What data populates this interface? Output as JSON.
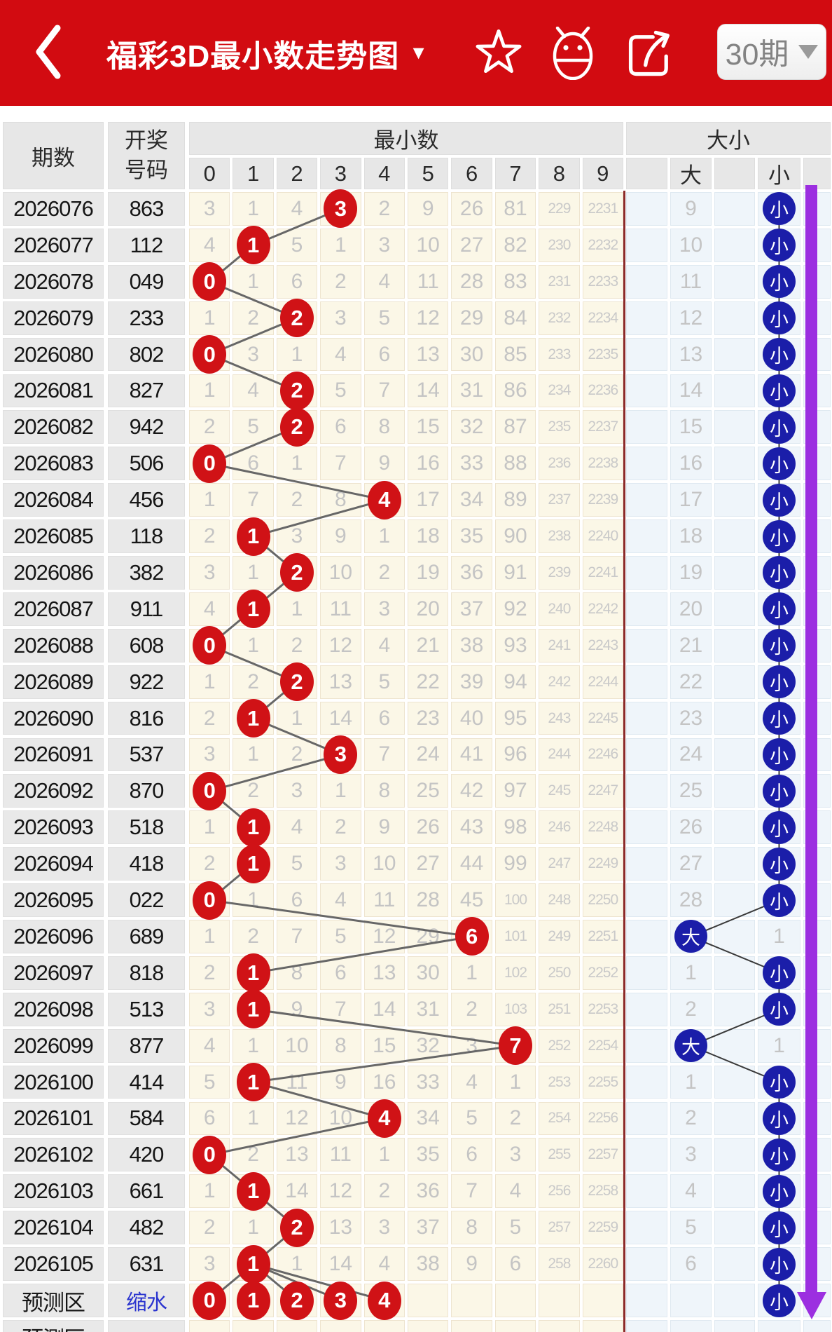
{
  "header": {
    "title": "福彩3D最小数走势图",
    "title_caret": "▼",
    "period_selector": "30期",
    "icons": {
      "back": "back-chevron",
      "favorite": "star-outline",
      "app": "android-robot",
      "share": "share-arrow",
      "period_caret": "chevron-down"
    }
  },
  "table": {
    "headers": {
      "period": "期数",
      "draw_number_line1": "开奖",
      "draw_number_line2": "号码",
      "min_group": "最小数",
      "digit_cols": [
        "0",
        "1",
        "2",
        "3",
        "4",
        "5",
        "6",
        "7",
        "8",
        "9"
      ],
      "size_group": "大小",
      "size_cols": [
        "",
        "大",
        "",
        "小",
        ""
      ]
    },
    "rows": [
      {
        "period": "2026076",
        "number": "863",
        "hit": 3,
        "miss": [
          3,
          1,
          4,
          null,
          2,
          9,
          26,
          81,
          229,
          2231
        ],
        "size": "小",
        "size_miss": 9
      },
      {
        "period": "2026077",
        "number": "112",
        "hit": 1,
        "miss": [
          4,
          null,
          5,
          1,
          3,
          10,
          27,
          82,
          230,
          2232
        ],
        "size": "小",
        "size_miss": 10
      },
      {
        "period": "2026078",
        "number": "049",
        "hit": 0,
        "miss": [
          null,
          1,
          6,
          2,
          4,
          11,
          28,
          83,
          231,
          2233
        ],
        "size": "小",
        "size_miss": 11
      },
      {
        "period": "2026079",
        "number": "233",
        "hit": 2,
        "miss": [
          1,
          2,
          null,
          3,
          5,
          12,
          29,
          84,
          232,
          2234
        ],
        "size": "小",
        "size_miss": 12
      },
      {
        "period": "2026080",
        "number": "802",
        "hit": 0,
        "miss": [
          null,
          3,
          1,
          4,
          6,
          13,
          30,
          85,
          233,
          2235
        ],
        "size": "小",
        "size_miss": 13
      },
      {
        "period": "2026081",
        "number": "827",
        "hit": 2,
        "miss": [
          1,
          4,
          null,
          5,
          7,
          14,
          31,
          86,
          234,
          2236
        ],
        "size": "小",
        "size_miss": 14
      },
      {
        "period": "2026082",
        "number": "942",
        "hit": 2,
        "miss": [
          2,
          5,
          null,
          6,
          8,
          15,
          32,
          87,
          235,
          2237
        ],
        "size": "小",
        "size_miss": 15
      },
      {
        "period": "2026083",
        "number": "506",
        "hit": 0,
        "miss": [
          null,
          6,
          1,
          7,
          9,
          16,
          33,
          88,
          236,
          2238
        ],
        "size": "小",
        "size_miss": 16
      },
      {
        "period": "2026084",
        "number": "456",
        "hit": 4,
        "miss": [
          1,
          7,
          2,
          8,
          null,
          17,
          34,
          89,
          237,
          2239
        ],
        "size": "小",
        "size_miss": 17
      },
      {
        "period": "2026085",
        "number": "118",
        "hit": 1,
        "miss": [
          2,
          null,
          3,
          9,
          1,
          18,
          35,
          90,
          238,
          2240
        ],
        "size": "小",
        "size_miss": 18
      },
      {
        "period": "2026086",
        "number": "382",
        "hit": 2,
        "miss": [
          3,
          1,
          null,
          10,
          2,
          19,
          36,
          91,
          239,
          2241
        ],
        "size": "小",
        "size_miss": 19
      },
      {
        "period": "2026087",
        "number": "911",
        "hit": 1,
        "miss": [
          4,
          null,
          1,
          11,
          3,
          20,
          37,
          92,
          240,
          2242
        ],
        "size": "小",
        "size_miss": 20
      },
      {
        "period": "2026088",
        "number": "608",
        "hit": 0,
        "miss": [
          null,
          1,
          2,
          12,
          4,
          21,
          38,
          93,
          241,
          2243
        ],
        "size": "小",
        "size_miss": 21
      },
      {
        "period": "2026089",
        "number": "922",
        "hit": 2,
        "miss": [
          1,
          2,
          null,
          13,
          5,
          22,
          39,
          94,
          242,
          2244
        ],
        "size": "小",
        "size_miss": 22
      },
      {
        "period": "2026090",
        "number": "816",
        "hit": 1,
        "miss": [
          2,
          null,
          1,
          14,
          6,
          23,
          40,
          95,
          243,
          2245
        ],
        "size": "小",
        "size_miss": 23
      },
      {
        "period": "2026091",
        "number": "537",
        "hit": 3,
        "miss": [
          3,
          1,
          2,
          null,
          7,
          24,
          41,
          96,
          244,
          2246
        ],
        "size": "小",
        "size_miss": 24
      },
      {
        "period": "2026092",
        "number": "870",
        "hit": 0,
        "miss": [
          null,
          2,
          3,
          1,
          8,
          25,
          42,
          97,
          245,
          2247
        ],
        "size": "小",
        "size_miss": 25
      },
      {
        "period": "2026093",
        "number": "518",
        "hit": 1,
        "miss": [
          1,
          null,
          4,
          2,
          9,
          26,
          43,
          98,
          246,
          2248
        ],
        "size": "小",
        "size_miss": 26
      },
      {
        "period": "2026094",
        "number": "418",
        "hit": 1,
        "miss": [
          2,
          null,
          5,
          3,
          10,
          27,
          44,
          99,
          247,
          2249
        ],
        "size": "小",
        "size_miss": 27
      },
      {
        "period": "2026095",
        "number": "022",
        "hit": 0,
        "miss": [
          null,
          1,
          6,
          4,
          11,
          28,
          45,
          100,
          248,
          2250
        ],
        "size": "小",
        "size_miss": 28
      },
      {
        "period": "2026096",
        "number": "689",
        "hit": 6,
        "miss": [
          1,
          2,
          7,
          5,
          12,
          29,
          null,
          101,
          249,
          2251
        ],
        "size": "大",
        "size_miss": 1
      },
      {
        "period": "2026097",
        "number": "818",
        "hit": 1,
        "miss": [
          2,
          null,
          8,
          6,
          13,
          30,
          1,
          102,
          250,
          2252
        ],
        "size": "小",
        "size_miss": 1
      },
      {
        "period": "2026098",
        "number": "513",
        "hit": 1,
        "miss": [
          3,
          null,
          9,
          7,
          14,
          31,
          2,
          103,
          251,
          2253
        ],
        "size": "小",
        "size_miss": 2
      },
      {
        "period": "2026099",
        "number": "877",
        "hit": 7,
        "miss": [
          4,
          1,
          10,
          8,
          15,
          32,
          3,
          null,
          252,
          2254
        ],
        "size": "大",
        "size_miss": 1
      },
      {
        "period": "2026100",
        "number": "414",
        "hit": 1,
        "miss": [
          5,
          null,
          11,
          9,
          16,
          33,
          4,
          1,
          253,
          2255
        ],
        "size": "小",
        "size_miss": 1
      },
      {
        "period": "2026101",
        "number": "584",
        "hit": 4,
        "miss": [
          6,
          1,
          12,
          10,
          null,
          34,
          5,
          2,
          254,
          2256
        ],
        "size": "小",
        "size_miss": 2
      },
      {
        "period": "2026102",
        "number": "420",
        "hit": 0,
        "miss": [
          null,
          2,
          13,
          11,
          1,
          35,
          6,
          3,
          255,
          2257
        ],
        "size": "小",
        "size_miss": 3
      },
      {
        "period": "2026103",
        "number": "661",
        "hit": 1,
        "miss": [
          1,
          null,
          14,
          12,
          2,
          36,
          7,
          4,
          256,
          2258
        ],
        "size": "小",
        "size_miss": 4
      },
      {
        "period": "2026104",
        "number": "482",
        "hit": 2,
        "miss": [
          2,
          1,
          null,
          13,
          3,
          37,
          8,
          5,
          257,
          2259
        ],
        "size": "小",
        "size_miss": 5
      },
      {
        "period": "2026105",
        "number": "631",
        "hit": 1,
        "miss": [
          3,
          null,
          1,
          14,
          4,
          38,
          9,
          6,
          258,
          2260
        ],
        "size": "小",
        "size_miss": 6
      }
    ],
    "prediction": {
      "label": "预测区",
      "action": "缩水",
      "hits": [
        0,
        1,
        2,
        3,
        4
      ],
      "size": "小"
    },
    "partial_row_label": "预测区",
    "colors": {
      "appbar_red": "#d20b11",
      "hit_circle_red": "#d01216",
      "size_circle_blue": "#1b1ea9",
      "trend_arrow_purple": "#9c2fe0",
      "section_separator": "#8c2a2a",
      "min_cell_bg": "#fbf7e7",
      "size_cell_bg": "#eff5fa"
    }
  }
}
